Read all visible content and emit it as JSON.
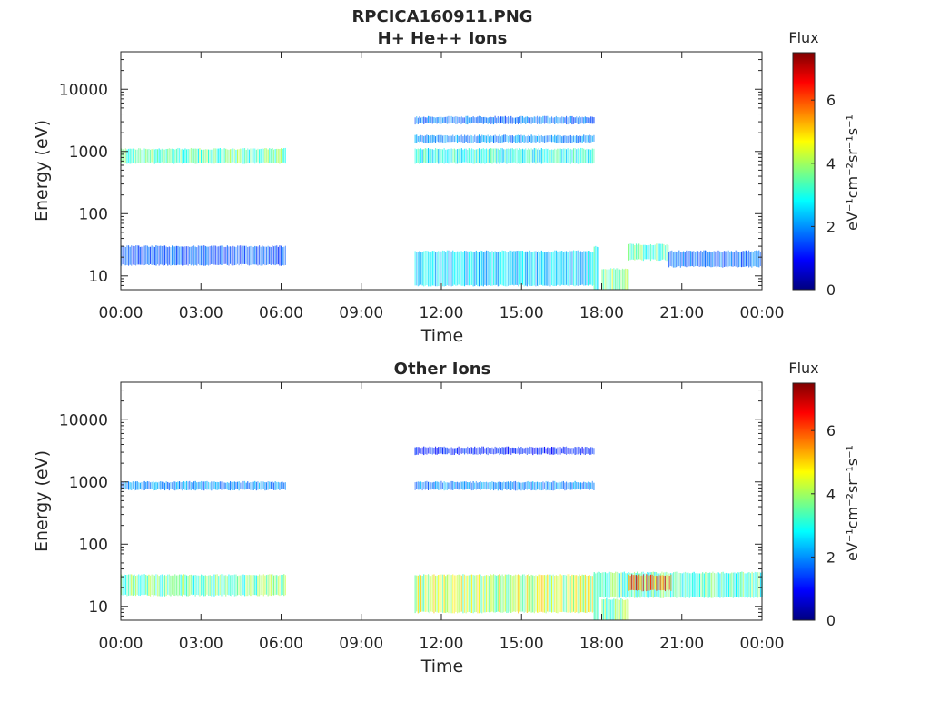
{
  "figure_title": "RPCICA160911.PNG",
  "colorbar_palette": [
    "#00007f",
    "#0000ff",
    "#007fff",
    "#00ffff",
    "#7fff7f",
    "#ffff00",
    "#ff7f00",
    "#ff0000",
    "#7f0000"
  ],
  "chart_data": [
    {
      "type": "heatmap",
      "title": "H+ He++ Ions",
      "xlabel": "Time",
      "ylabel": "Energy (eV)",
      "x_ticks": [
        "00:00",
        "03:00",
        "06:00",
        "09:00",
        "12:00",
        "15:00",
        "18:00",
        "21:00",
        "00:00"
      ],
      "x_range_hours": [
        0,
        24
      ],
      "y_scale": "log",
      "y_range_eV": [
        6,
        40000
      ],
      "y_ticks": [
        {
          "value": 10,
          "label": "10"
        },
        {
          "value": 100,
          "label": "100"
        },
        {
          "value": 1000,
          "label": "1000"
        },
        {
          "value": 10000,
          "label": "10000"
        }
      ],
      "colorbar": {
        "title": "Flux",
        "units": "eV⁻¹cm⁻²sr⁻¹s⁻¹",
        "range": [
          0,
          7.5
        ],
        "ticks": [
          0,
          2,
          4,
          6
        ]
      },
      "grid": false,
      "regions": [
        {
          "t_start_hours": 0.0,
          "t_end_hours": 6.2,
          "e_low_eV": 650,
          "e_high_eV": 1100,
          "flux": 3.5
        },
        {
          "t_start_hours": 0.0,
          "t_end_hours": 6.2,
          "e_low_eV": 15,
          "e_high_eV": 30,
          "flux": 1.6
        },
        {
          "t_start_hours": 11.0,
          "t_end_hours": 17.7,
          "e_low_eV": 650,
          "e_high_eV": 1100,
          "flux": 3.0
        },
        {
          "t_start_hours": 11.0,
          "t_end_hours": 17.7,
          "e_low_eV": 1400,
          "e_high_eV": 1800,
          "flux": 2.0
        },
        {
          "t_start_hours": 11.0,
          "t_end_hours": 17.7,
          "e_low_eV": 2800,
          "e_high_eV": 3600,
          "flux": 1.8
        },
        {
          "t_start_hours": 11.0,
          "t_end_hours": 17.7,
          "e_low_eV": 7,
          "e_high_eV": 25,
          "flux": 2.5
        },
        {
          "t_start_hours": 17.7,
          "t_end_hours": 17.9,
          "e_low_eV": 6,
          "e_high_eV": 30,
          "flux": 3.0
        },
        {
          "t_start_hours": 18.0,
          "t_end_hours": 19.0,
          "e_low_eV": 6,
          "e_high_eV": 13,
          "flux": 3.8
        },
        {
          "t_start_hours": 19.0,
          "t_end_hours": 20.5,
          "e_low_eV": 18,
          "e_high_eV": 32,
          "flux": 3.4
        },
        {
          "t_start_hours": 20.5,
          "t_end_hours": 24.0,
          "e_low_eV": 14,
          "e_high_eV": 25,
          "flux": 1.8
        }
      ]
    },
    {
      "type": "heatmap",
      "title": "Other Ions",
      "xlabel": "Time",
      "ylabel": "Energy (eV)",
      "x_ticks": [
        "00:00",
        "03:00",
        "06:00",
        "09:00",
        "12:00",
        "15:00",
        "18:00",
        "21:00",
        "00:00"
      ],
      "x_range_hours": [
        0,
        24
      ],
      "y_scale": "log",
      "y_range_eV": [
        6,
        40000
      ],
      "y_ticks": [
        {
          "value": 10,
          "label": "10"
        },
        {
          "value": 100,
          "label": "100"
        },
        {
          "value": 1000,
          "label": "1000"
        },
        {
          "value": 10000,
          "label": "10000"
        }
      ],
      "colorbar": {
        "title": "Flux",
        "units": "eV⁻¹cm⁻²sr⁻¹s⁻¹",
        "range": [
          0,
          7.5
        ],
        "ticks": [
          0,
          2,
          4,
          6
        ]
      },
      "grid": false,
      "regions": [
        {
          "t_start_hours": 0.0,
          "t_end_hours": 6.2,
          "e_low_eV": 750,
          "e_high_eV": 1000,
          "flux": 2.0
        },
        {
          "t_start_hours": 0.0,
          "t_end_hours": 6.2,
          "e_low_eV": 15,
          "e_high_eV": 32,
          "flux": 3.6
        },
        {
          "t_start_hours": 11.0,
          "t_end_hours": 17.7,
          "e_low_eV": 750,
          "e_high_eV": 1000,
          "flux": 2.0
        },
        {
          "t_start_hours": 11.0,
          "t_end_hours": 17.7,
          "e_low_eV": 2800,
          "e_high_eV": 3600,
          "flux": 1.2
        },
        {
          "t_start_hours": 11.0,
          "t_end_hours": 17.7,
          "e_low_eV": 8,
          "e_high_eV": 32,
          "flux": 4.3
        },
        {
          "t_start_hours": 17.7,
          "t_end_hours": 17.9,
          "e_low_eV": 6,
          "e_high_eV": 35,
          "flux": 3.0
        },
        {
          "t_start_hours": 18.0,
          "t_end_hours": 19.0,
          "e_low_eV": 6,
          "e_high_eV": 13,
          "flux": 3.6
        },
        {
          "t_start_hours": 17.9,
          "t_end_hours": 24.0,
          "e_low_eV": 14,
          "e_high_eV": 35,
          "flux": 3.4
        },
        {
          "t_start_hours": 19.0,
          "t_end_hours": 20.6,
          "e_low_eV": 18,
          "e_high_eV": 32,
          "flux": 6.0
        }
      ]
    }
  ]
}
